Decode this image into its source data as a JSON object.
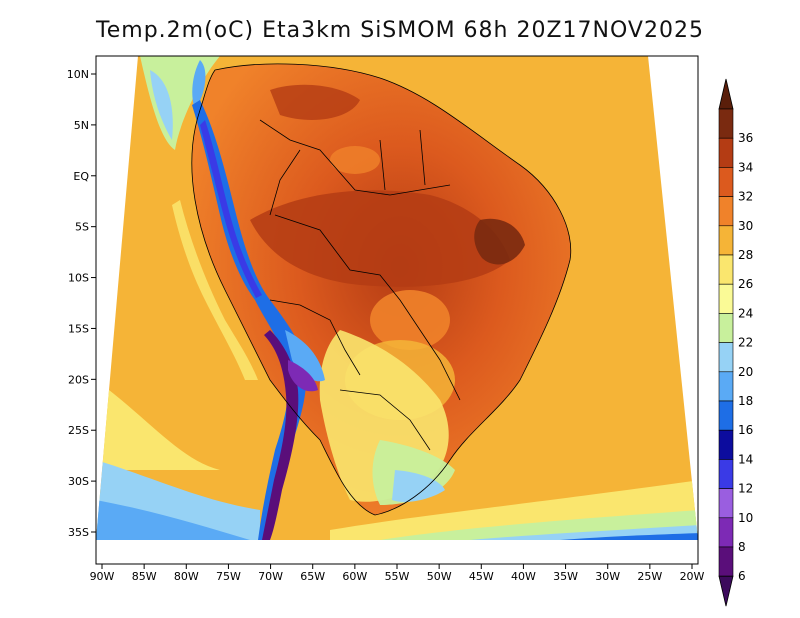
{
  "title": "Temp.2m(oC) Eta3km SiSMOM 68h 20Z17NOV2025",
  "map": {
    "variable": "Temp.2m",
    "units": "oC",
    "model": "Eta3km",
    "forecast_hour": "68h",
    "valid_time": "20Z17NOV2025",
    "lon_range": [
      -90,
      -20
    ],
    "lat_range": [
      -38,
      12
    ],
    "lon_labels": [
      "90W",
      "85W",
      "80W",
      "75W",
      "70W",
      "65W",
      "60W",
      "55W",
      "50W",
      "45W",
      "40W",
      "35W",
      "30W",
      "25W",
      "20W"
    ],
    "lat_labels": [
      "10N",
      "5N",
      "EQ",
      "5S",
      "10S",
      "15S",
      "20S",
      "25S",
      "30S",
      "35S"
    ]
  },
  "colorbar": {
    "labels": [
      "6",
      "8",
      "10",
      "12",
      "14",
      "16",
      "18",
      "20",
      "22",
      "24",
      "26",
      "28",
      "30",
      "32",
      "34",
      "36"
    ],
    "colors": [
      "#5a0e7a",
      "#7d2ab5",
      "#9a5ee0",
      "#3a3ae6",
      "#0c0c9e",
      "#1e6ee6",
      "#5aaaf5",
      "#96d2f5",
      "#c8f09c",
      "#fafa96",
      "#fae66e",
      "#f5b437",
      "#f0822a",
      "#dc5a1e",
      "#b43c14",
      "#7a2a10"
    ],
    "under_color": "#3c0a5c",
    "over_color": "#5a1e0a"
  }
}
